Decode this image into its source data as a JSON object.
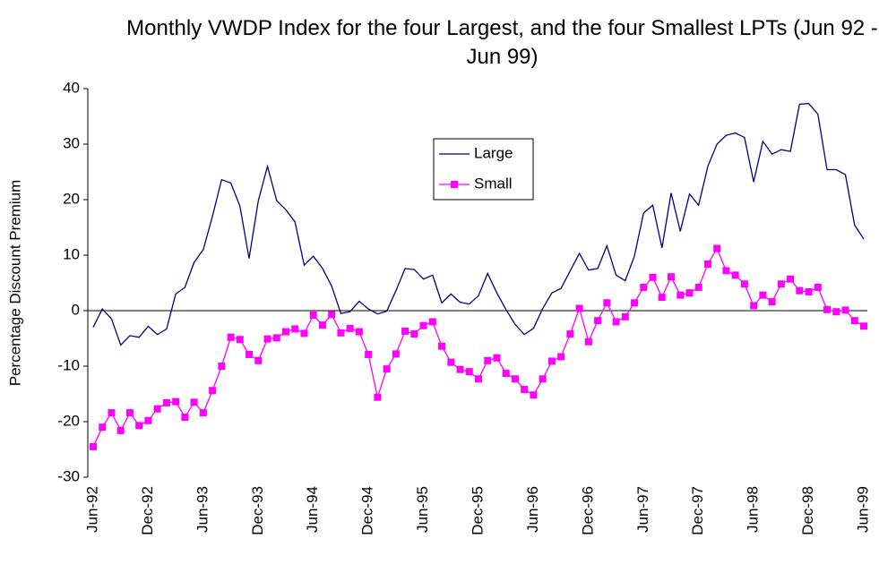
{
  "chart_data": {
    "type": "line",
    "title": "Monthly VWDP Index for the four Largest, and the four Smallest LPTs (Jun 92 - Jun 99)",
    "y_label": "Percentage Discount Premium",
    "categories": [
      "Jun-92",
      null,
      null,
      null,
      null,
      null,
      "Dec-92",
      null,
      null,
      null,
      null,
      null,
      "Jun-93",
      null,
      null,
      null,
      null,
      null,
      "Dec-93",
      null,
      null,
      null,
      null,
      null,
      "Jun-94",
      null,
      null,
      null,
      null,
      null,
      "Dec-94",
      null,
      null,
      null,
      null,
      null,
      "Jun-95",
      null,
      null,
      null,
      null,
      null,
      "Dec-95",
      null,
      null,
      null,
      null,
      null,
      "Jun-96",
      null,
      null,
      null,
      null,
      null,
      "Dec-96",
      null,
      null,
      null,
      null,
      null,
      "Jun-97",
      null,
      null,
      null,
      null,
      null,
      "Dec-97",
      null,
      null,
      null,
      null,
      null,
      "Jun-98",
      null,
      null,
      null,
      null,
      null,
      "Dec-98",
      null,
      null,
      null,
      null,
      null,
      "Jun-99"
    ],
    "series": [
      {
        "name": "Large",
        "color": "#000080",
        "marker": "none",
        "values": [
          -3,
          0.3,
          -1.5,
          -6.2,
          -4.5,
          -4.8,
          -2.8,
          -4.3,
          -3.3,
          3,
          4.2,
          8.7,
          11,
          17,
          23.6,
          23,
          18.8,
          9.4,
          19.8,
          26,
          19.8,
          18.2,
          16,
          8.2,
          9.8,
          7.6,
          4.4,
          -0.5,
          -0.2,
          1.7,
          0.3,
          -0.6,
          -0.1,
          3.6,
          7.6,
          7.4,
          5.7,
          6.4,
          1.4,
          3,
          1.5,
          1.2,
          2.7,
          6.7,
          3.2,
          0.2,
          -2.5,
          -4.3,
          -3.2,
          0.4,
          3.2,
          4,
          7.2,
          10.3,
          7.3,
          7.6,
          11.7,
          6.4,
          5.4,
          9.8,
          17.6,
          19,
          11.3,
          21.2,
          14.3,
          21,
          19,
          26,
          30,
          31.6,
          32,
          31.2,
          23.2,
          30.5,
          28.2,
          29,
          28.7,
          37.2,
          37.3,
          35.4,
          25.4,
          25.4,
          24.5,
          15.4,
          12.9
        ]
      },
      {
        "name": "Small",
        "color": "#ff00ff",
        "marker": "square",
        "values": [
          -24.5,
          -21,
          -18.4,
          -21.6,
          -18.4,
          -20.7,
          -19.8,
          -17.7,
          -16.6,
          -16.4,
          -19.2,
          -16.5,
          -18.4,
          -14.4,
          -10,
          -4.8,
          -5.2,
          -7.9,
          -9,
          -5.1,
          -4.9,
          -3.8,
          -3.3,
          -4.1,
          -0.8,
          -2.6,
          -0.7,
          -4,
          -3.2,
          -3.8,
          -7.9,
          -15.6,
          -10.5,
          -7.8,
          -3.7,
          -4.2,
          -2.7,
          -2,
          -6.4,
          -9.3,
          -10.6,
          -11,
          -12.3,
          -9,
          -8.5,
          -11.3,
          -12.3,
          -14.2,
          -15.2,
          -12.3,
          -9.1,
          -8.3,
          -4.2,
          0.4,
          -5.6,
          -1.8,
          1.4,
          -2,
          -1.1,
          1.4,
          4.2,
          6,
          2.4,
          6.1,
          2.8,
          3.2,
          4.2,
          8.4,
          11.2,
          7.2,
          6.4,
          4.8,
          0.9,
          2.8,
          1.6,
          4.8,
          5.7,
          3.6,
          3.4,
          4.2,
          0.2,
          -0.2,
          0.1,
          -1.8,
          -2.8
        ]
      }
    ],
    "ylim": [
      -30,
      40
    ],
    "yticks": [
      -30,
      -20,
      -10,
      0,
      10,
      20,
      30,
      40
    ],
    "grid": false,
    "legend": "upper-center"
  }
}
